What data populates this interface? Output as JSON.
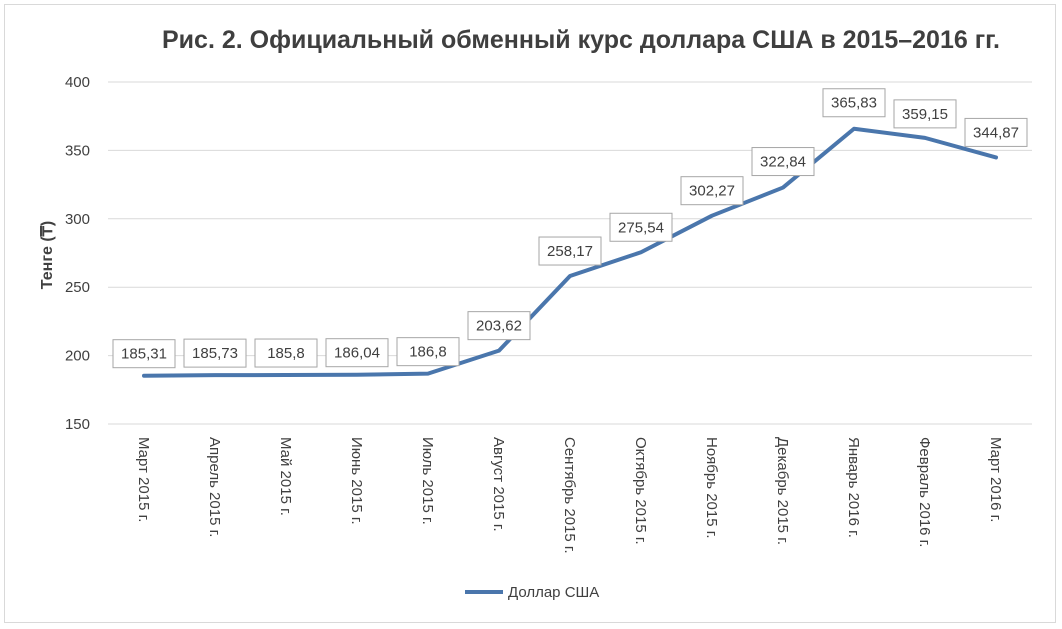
{
  "chart_data": {
    "type": "line",
    "title": "Рис. 2. Официальный обменный курс доллара США в 2015–2016 гг.",
    "ylabel": "Тенге (₸)",
    "xlabel": "",
    "ylim": [
      150,
      400
    ],
    "yticks": [
      150,
      200,
      250,
      300,
      350,
      400
    ],
    "categories": [
      "Март 2015 г.",
      "Апрель 2015 г.",
      "Май 2015 г.",
      "Июнь 2015 г.",
      "Июль 2015 г.",
      "Август 2015 г.",
      "Сентябрь 2015 г.",
      "Октябрь 2015 г.",
      "Ноябрь 2015 г.",
      "Декабрь 2015 г.",
      "Январь 2016 г.",
      "Февраль 2016 г.",
      "Март 2016 г."
    ],
    "series": [
      {
        "name": "Доллар США",
        "values": [
          185.31,
          185.73,
          185.8,
          186.04,
          186.8,
          203.62,
          258.17,
          275.54,
          302.27,
          322.84,
          365.83,
          359.15,
          344.87
        ],
        "data_labels": [
          "185,31",
          "185,73",
          "185,8",
          "186,04",
          "186,8",
          "203,62",
          "258,17",
          "275,54",
          "302,27",
          "322,84",
          "365,83",
          "359,15",
          "344,87"
        ],
        "color": "#4a76ac"
      }
    ],
    "grid": true,
    "legend": "bottom"
  }
}
